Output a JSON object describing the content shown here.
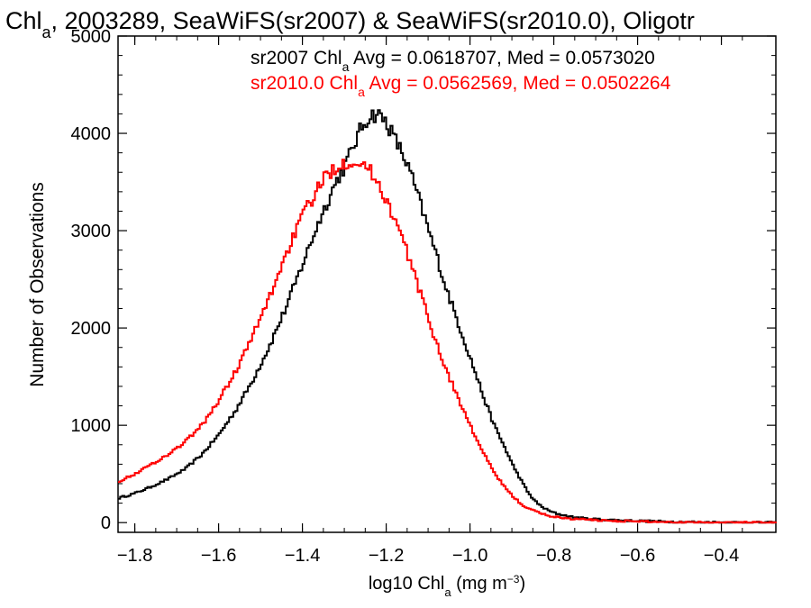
{
  "chart_data": {
    "type": "line",
    "title": {
      "pre": "Chl",
      "sub": "a",
      "post": ", 2003289, SeaWiFS(sr2007) & SeaWiFS(sr2010.0), Oligotr"
    },
    "xlabel": {
      "pre": "log10 Chl",
      "sub": "a",
      "mid": " (mg m",
      "sup": "−3",
      "post": ")"
    },
    "ylabel": "Number of Observations",
    "xlim": [
      -1.84,
      -0.27
    ],
    "ylim": [
      -100,
      5000
    ],
    "x_ticks": [
      -1.8,
      -1.6,
      -1.4,
      -1.2,
      -1.0,
      -0.8,
      -0.6,
      -0.4
    ],
    "x_tick_labels": [
      "−1.8",
      "−1.6",
      "−1.4",
      "−1.2",
      "−1.0",
      "−0.8",
      "−0.6",
      "−0.4"
    ],
    "y_ticks": [
      0,
      1000,
      2000,
      3000,
      4000,
      5000
    ],
    "y_tick_labels": [
      "0",
      "1000",
      "2000",
      "3000",
      "4000",
      "5000"
    ],
    "grid": false,
    "series": [
      {
        "name": "sr2007",
        "color": "#000000",
        "x": [
          -1.84,
          -1.8,
          -1.76,
          -1.72,
          -1.68,
          -1.64,
          -1.6,
          -1.56,
          -1.52,
          -1.48,
          -1.44,
          -1.4,
          -1.36,
          -1.32,
          -1.3,
          -1.28,
          -1.26,
          -1.24,
          -1.22,
          -1.2,
          -1.18,
          -1.16,
          -1.14,
          -1.12,
          -1.1,
          -1.08,
          -1.06,
          -1.04,
          -1.02,
          -1.0,
          -0.98,
          -0.96,
          -0.94,
          -0.92,
          -0.9,
          -0.88,
          -0.86,
          -0.84,
          -0.82,
          -0.8,
          -0.78,
          -0.76,
          -0.74,
          -0.72,
          -0.7,
          -0.65,
          -0.6,
          -0.55,
          -0.5,
          -0.45,
          -0.4,
          -0.35,
          -0.3,
          -0.27
        ],
        "y": [
          250,
          300,
          370,
          450,
          550,
          700,
          900,
          1150,
          1450,
          1800,
          2200,
          2650,
          3100,
          3500,
          3650,
          3850,
          4050,
          4180,
          4200,
          4120,
          3950,
          3780,
          3570,
          3300,
          3020,
          2750,
          2450,
          2200,
          1950,
          1700,
          1450,
          1200,
          980,
          800,
          610,
          450,
          300,
          200,
          140,
          100,
          80,
          60,
          50,
          40,
          35,
          25,
          18,
          12,
          8,
          5,
          3,
          2,
          1,
          1
        ]
      },
      {
        "name": "sr2010.0",
        "color": "#ff0000",
        "x": [
          -1.84,
          -1.8,
          -1.76,
          -1.72,
          -1.68,
          -1.64,
          -1.6,
          -1.56,
          -1.52,
          -1.48,
          -1.44,
          -1.4,
          -1.36,
          -1.34,
          -1.32,
          -1.3,
          -1.28,
          -1.26,
          -1.24,
          -1.22,
          -1.2,
          -1.18,
          -1.16,
          -1.14,
          -1.12,
          -1.1,
          -1.08,
          -1.06,
          -1.04,
          -1.02,
          -1.0,
          -0.98,
          -0.96,
          -0.94,
          -0.92,
          -0.9,
          -0.88,
          -0.86,
          -0.84,
          -0.82,
          -0.8,
          -0.78,
          -0.76,
          -0.74,
          -0.72,
          -0.7,
          -0.65,
          -0.6,
          -0.55,
          -0.5,
          -0.45,
          -0.4,
          -0.35,
          -0.3,
          -0.27
        ],
        "y": [
          420,
          500,
          600,
          700,
          830,
          1000,
          1250,
          1550,
          1900,
          2300,
          2750,
          3150,
          3450,
          3580,
          3660,
          3700,
          3720,
          3700,
          3620,
          3500,
          3320,
          3120,
          2900,
          2650,
          2380,
          2100,
          1850,
          1600,
          1400,
          1200,
          1000,
          820,
          650,
          500,
          380,
          280,
          200,
          140,
          110,
          80,
          60,
          50,
          40,
          35,
          30,
          25,
          18,
          12,
          8,
          5,
          3,
          2,
          1,
          1,
          1
        ]
      }
    ],
    "annotations": [
      {
        "label": "sr2007 Chl",
        "sub": "a",
        "rest": " Avg = 0.0618707, Med = 0.0573020",
        "color": "#000000"
      },
      {
        "label": "sr2010.0 Chl",
        "sub": "a",
        "rest": " Avg = 0.0562569, Med = 0.0502264",
        "color": "#ff0000"
      }
    ]
  }
}
